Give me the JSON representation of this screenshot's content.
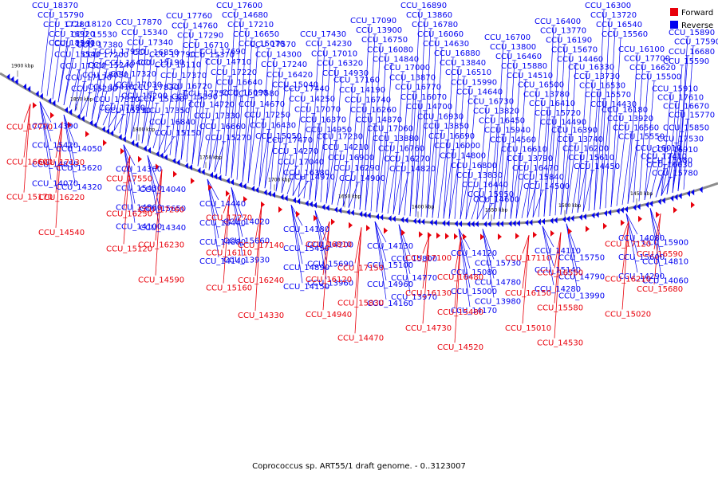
{
  "caption": "Coprococcus sp. ART55/1 draft genome. - 0..3123007",
  "colors": {
    "forward": "#e8000b",
    "reverse": "#0000f0",
    "backbone": "#8c8c8c"
  },
  "legend": [
    {
      "label": "Forward",
      "strand": "forward"
    },
    {
      "label": "Reverse",
      "strand": "reverse"
    }
  ],
  "ticks": [
    "1900 kbp",
    "1850 kbp",
    "1800 kbp",
    "1750 kbp",
    "1700 kbp",
    "1650 kbp",
    "1600 kbp",
    "1550 kbp",
    "1500 kbp",
    "1450 kbp"
  ],
  "reverse_labels": [
    "CCU_18370",
    "CCU_18240",
    "CCU_18120",
    "CCU_18050",
    "CCU_17990",
    "CCU_17870",
    "CCU_17830",
    "CCU_17790",
    "CCU_17760",
    "CCU_17750",
    "CCU_17690",
    "CCU_17600",
    "CCU_17580",
    "CCU_17570",
    "CCU_17470",
    "CCU_17440",
    "CCU_17430",
    "CCU_17230",
    "CCU_17160",
    "CCU_17090",
    "CCU_17060",
    "CCU_17000",
    "CCU_16890",
    "CCU_16930",
    "CCU_16880",
    "CCU_16800",
    "CCU_16730",
    "CCU_16700",
    "CCU_16610",
    "CCU_16500",
    "CCU_16400",
    "CCU_16390",
    "CCU_16330",
    "CCU_16300",
    "CCU_16180",
    "CCU_16100",
    "CCU_16010",
    "CCU_15910",
    "CCU_15890",
    "CCU_15850",
    "CCU_15790",
    "CCU_15540",
    "CCU_15530",
    "CCU_15410",
    "CCU_15400",
    "CCU_15340",
    "CCU_15130",
    "CCU_15110",
    "CCU_14760",
    "CCU_14720",
    "CCU_14710",
    "CCU_14680",
    "CCU_14670",
    "CCU_14300",
    "CCU_14270",
    "CCU_14250",
    "CCU_14230",
    "CCU_14210",
    "CCU_14190",
    "CCU_13900",
    "CCU_13880",
    "CCU_13870",
    "CCU_13860",
    "CCU_13850",
    "CCU_13840",
    "CCU_13830",
    "CCU_13820",
    "CCU_13800",
    "CCU_13790",
    "CCU_13780",
    "CCU_13770",
    "CCU_13740",
    "CCU_13730",
    "CCU_13720",
    "CCU_13920",
    "CCU_17700",
    "CCU_17410",
    "CCU_17610",
    "CCU_17590",
    "CCU_17530",
    "CCU_17280",
    "CCU_17300",
    "CCU_17380",
    "CCU_17310",
    "CCU_17320",
    "CCU_17340",
    "CCU_17350",
    "CCU_17370",
    "CCU_17290",
    "CCU_17330",
    "CCU_17220",
    "CCU_17210",
    "CCU_17250",
    "CCU_17240",
    "CCU_17040",
    "CCU_17070",
    "CCU_17010",
    "CCU_16900",
    "CCU_16740",
    "CCU_16750",
    "CCU_16760",
    "CCU_16770",
    "CCU_16780",
    "CCU_16690",
    "CCU_16510",
    "CCU_16440",
    "CCU_16450",
    "CCU_16460",
    "CCU_16470",
    "CCU_16410",
    "CCU_16190",
    "CCU_16200",
    "CCU_16530",
    "CCU_16540",
    "CCU_16560",
    "CCU_16620",
    "CCU_16630",
    "CCU_16670",
    "CCU_16680",
    "CCU_16910",
    "CCU_16920",
    "CCU_17170",
    "CCU_17200",
    "CCU_17180",
    "CCU_17030",
    "CCU_16850",
    "CCU_16840",
    "CCU_16720",
    "CCU_16710",
    "CCU_16660",
    "CCU_16640",
    "CCU_16650",
    "CCU_16430",
    "CCU_16420",
    "CCU_16380",
    "CCU_16370",
    "CCU_16320",
    "CCU_16290",
    "CCU_16260",
    "CCU_16080",
    "CCU_16270",
    "CCU_16070",
    "CCU_16060",
    "CCU_16000",
    "CCU_15990",
    "CCU_15950",
    "CCU_15940",
    "CCU_15880",
    "CCU_15840",
    "CCU_15720",
    "CCU_15670",
    "CCU_15610",
    "CCU_15570",
    "CCU_15560",
    "CCU_15550",
    "CCU_15500",
    "CCU_15780",
    "CCU_15770",
    "CCU_15590",
    "CCU_15380",
    "CCU_15310",
    "CCU_15280",
    "CCU_15240",
    "CCU_15210",
    "CCU_15200",
    "CCU_15190",
    "CCU_15150",
    "CCU_15390",
    "CCU_15370",
    "CCU_15270",
    "CCU_15090",
    "CCU_15070",
    "CCU_15050",
    "CCU_15040",
    "CCU_14970",
    "CCU_14950",
    "CCU_14930",
    "CCU_14900",
    "CCU_14870",
    "CCU_14840",
    "CCU_14820",
    "CCU_14700",
    "CCU_14630",
    "CCU_14800",
    "CCU_14640",
    "CCU_14600",
    "CCU_14560",
    "CCU_14510",
    "CCU_14500",
    "CCU_14490",
    "CCU_14460",
    "CCU_14450",
    "CCU_14430",
    "CCU_14390",
    "CCU_14360",
    "CCU_14440",
    "CCU_14180",
    "CCU_14130",
    "CCU_14120",
    "CCU_14110",
    "CCU_14080",
    "CCU_14050",
    "CCU_14040",
    "CCU_14020",
    "CCU_14200",
    "CCU_15800",
    "CCU_15730",
    "CCU_15750",
    "CCU_15900",
    "CCU_15420",
    "CCU_15430",
    "CCU_15440",
    "CCU_15450",
    "CCU_15100",
    "CCU_15080",
    "CCU_15140",
    "CCU_15600",
    "CCU_15620",
    "CCU_15650",
    "CCU_15660",
    "CCU_15690",
    "CCU_14770",
    "CCU_14780",
    "CCU_14790",
    "CCU_14810",
    "CCU_14850",
    "CCU_14860",
    "CCU_14880",
    "CCU_14890",
    "CCU_14960",
    "CCU_15000",
    "CCU_14280",
    "CCU_14290",
    "CCU_14320",
    "CCU_14340",
    "CCU_13930",
    "CCU_13960",
    "CCU_13970",
    "CCU_13980",
    "CCU_13990",
    "CCU_14060",
    "CCU_14070",
    "CCU_14100",
    "CCU_14140",
    "CCU_14150",
    "CCU_14160",
    "CCU_14170"
  ],
  "forward_labels": [
    "CCU_17770",
    "CCU_17550",
    "CCU_17270",
    "CCU_16810",
    "CCU_17100",
    "CCU_17110",
    "CCU_17120",
    "CCU_17130",
    "CCU_17260",
    "CCU_17140",
    "CCU_17150",
    "CCU_16480",
    "CCU_16550",
    "CCU_16590",
    "CCU_16600",
    "CCU_16250",
    "CCU_16110",
    "CCU_16120",
    "CCU_16130",
    "CCU_16150",
    "CCU_16210",
    "CCU_16220",
    "CCU_16230",
    "CCU_16240",
    "CCU_15830",
    "CCU_15480",
    "CCU_15580",
    "CCU_15680",
    "CCU_15170",
    "CCU_15120",
    "CCU_15160",
    "CCU_14940",
    "CCU_14730",
    "CCU_15010",
    "CCU_15020",
    "CCU_14540",
    "CCU_14590",
    "CCU_14330",
    "CCU_14470",
    "CCU_14520",
    "CCU_14530"
  ]
}
